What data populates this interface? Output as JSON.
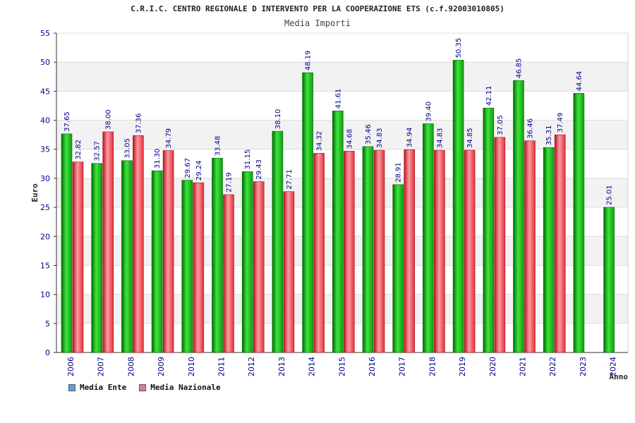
{
  "title": "C.R.I.C. CENTRO REGIONALE D INTERVENTO PER LA COOPERAZIONE ETS (c.f.92003010805)",
  "subtitle": "Media Importi",
  "legend": {
    "ente_label": "Media Ente",
    "nazionale_label": "Media Nazionale",
    "ente_color": "#5aa0e6",
    "nazionale_color": "#e27a9a"
  },
  "chart_data": {
    "type": "bar",
    "title": "C.R.I.C. CENTRO REGIONALE D INTERVENTO PER LA COOPERAZIONE ETS (c.f.92003010805)",
    "subtitle": "Media Importi",
    "xlabel": "Anno",
    "ylabel": "Euro",
    "ylim": [
      0,
      55
    ],
    "yticks": [
      0,
      5,
      10,
      15,
      20,
      25,
      30,
      35,
      40,
      45,
      50,
      55
    ],
    "categories": [
      "2006",
      "2007",
      "2008",
      "2009",
      "2010",
      "2011",
      "2012",
      "2013",
      "2014",
      "2015",
      "2016",
      "2017",
      "2018",
      "2019",
      "2020",
      "2021",
      "2022",
      "2023",
      "2024"
    ],
    "series": [
      {
        "name": "Media Ente",
        "color": "#1aa81a",
        "values": [
          37.65,
          32.57,
          33.05,
          31.3,
          29.67,
          33.48,
          31.15,
          38.1,
          48.19,
          41.61,
          35.46,
          28.91,
          39.4,
          50.35,
          42.11,
          46.85,
          35.31,
          44.64,
          25.01
        ],
        "labels": [
          "37.65",
          "32.57",
          "33.05",
          "31.30",
          "29.67",
          "33.48",
          "31.15",
          "38.10",
          "48.19",
          "41.61",
          "35.46",
          "28.91",
          "39.40",
          "50.35",
          "42.11",
          "46.85",
          "35.31",
          "44.64",
          "25.01"
        ]
      },
      {
        "name": "Media Nazionale",
        "color": "#e8323c",
        "values": [
          32.82,
          38.0,
          37.36,
          34.79,
          29.24,
          27.19,
          29.43,
          27.71,
          34.32,
          34.68,
          34.83,
          34.94,
          34.83,
          34.85,
          37.05,
          36.46,
          37.49,
          null,
          null
        ],
        "labels": [
          "32.82",
          "38.00",
          "37.36",
          "34.79",
          "29.24",
          "27.19",
          "29.43",
          "27.71",
          "34.32",
          "34.68",
          "34.83",
          "34.94",
          "34.83",
          "34.85",
          "37.05",
          "36.46",
          "37.49",
          "",
          ""
        ]
      }
    ],
    "grid": true,
    "legend_position": "bottom-left"
  }
}
